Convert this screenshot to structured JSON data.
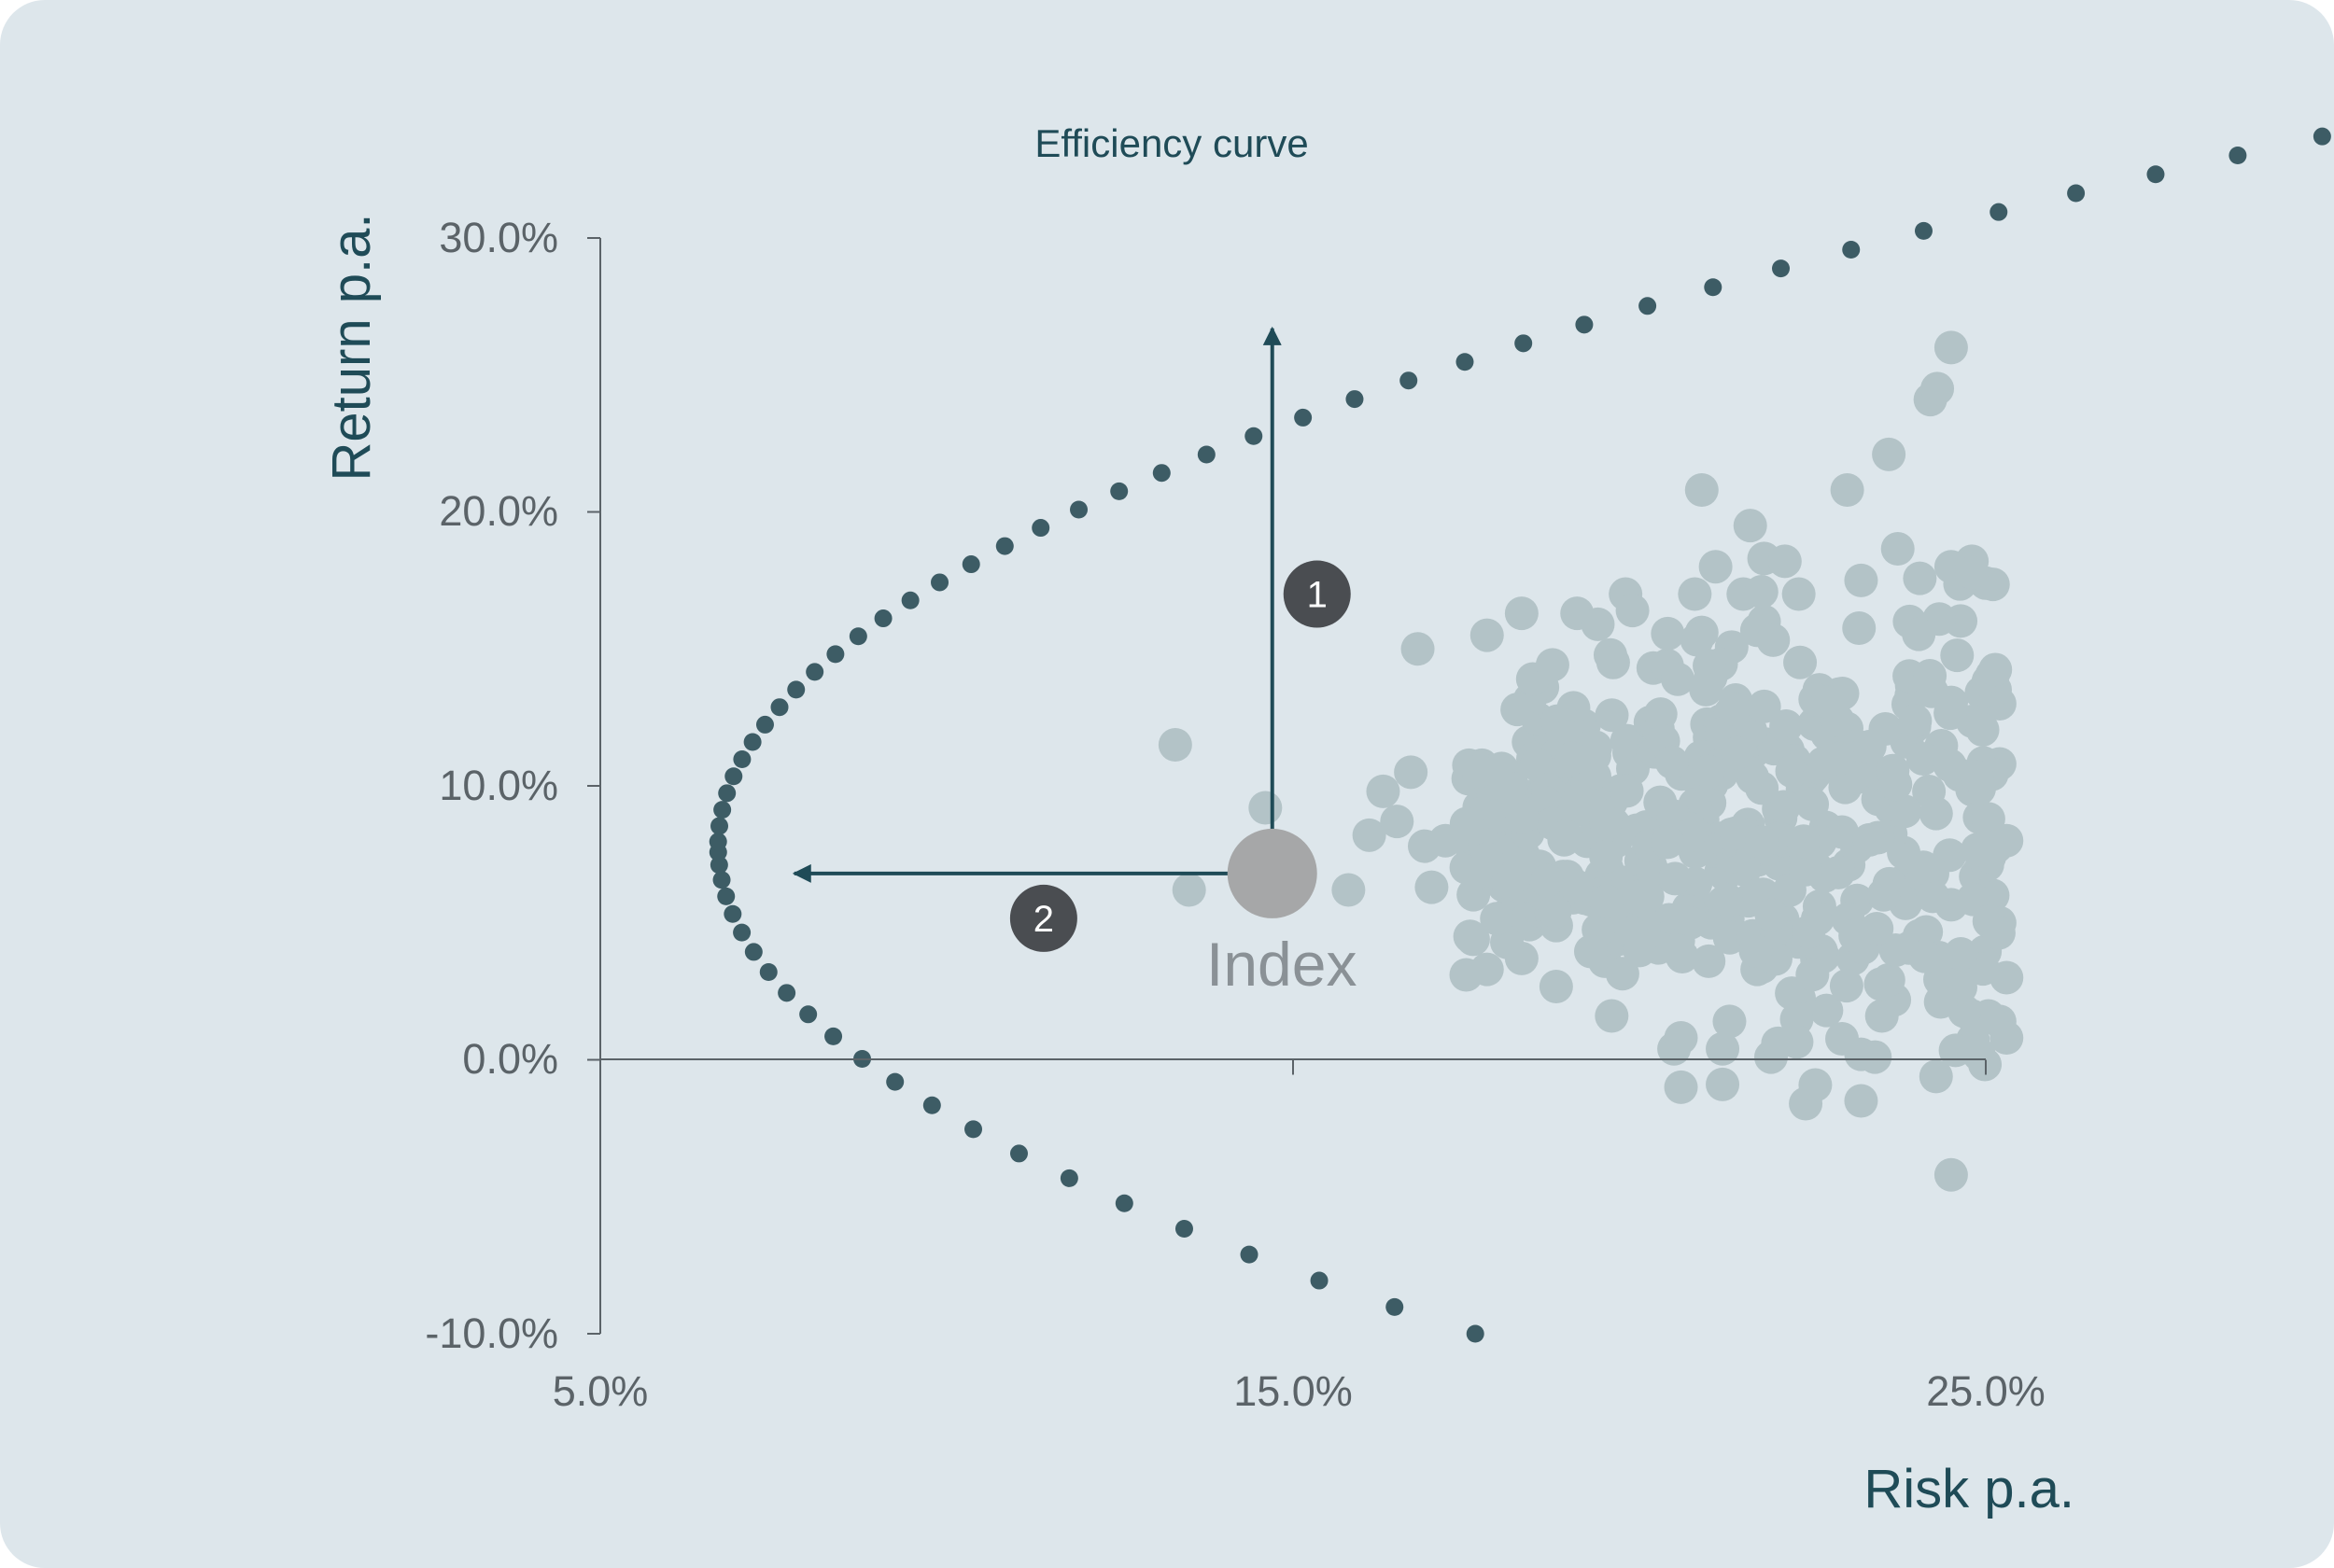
{
  "chart_data": {
    "type": "scatter",
    "xlabel": "Risk p.a.",
    "ylabel": "Return p.a.",
    "xlim": [
      5.0,
      25.0
    ],
    "ylim": [
      -10.0,
      30.0
    ],
    "x_ticks": [
      "5.0%",
      "15.0%",
      "25.0%"
    ],
    "y_ticks": [
      "30.0%",
      "20.0%",
      "10.0%",
      "0.0%",
      "-10.0%"
    ],
    "grid": false,
    "frontier_label": "Efficiency curve",
    "frontier": {
      "min_risk": 6.7,
      "min_risk_return": 7.8,
      "curvature": 0.0345,
      "return_range": [
        -10.0,
        34.4
      ],
      "points": 64,
      "color": "#3d5c65"
    },
    "index_point": {
      "label": "Index",
      "x": 14.7,
      "y": 6.8,
      "color": "#a6a7a8"
    },
    "arrows": [
      {
        "badge": "1",
        "from": [
          14.7,
          6.8
        ],
        "to": [
          14.7,
          26.7
        ]
      },
      {
        "badge": "2",
        "from": [
          14.3,
          6.8
        ],
        "to": [
          7.8,
          6.8
        ]
      }
    ],
    "portfolio_color": "#b3c3c7",
    "portfolios": [
      [
        13.3,
        11.5
      ],
      [
        13.5,
        6.2
      ],
      [
        14.6,
        9.2
      ],
      [
        15.8,
        6.2
      ],
      [
        16.1,
        8.2
      ],
      [
        16.3,
        9.8
      ],
      [
        16.5,
        8.7
      ],
      [
        16.7,
        10.5
      ],
      [
        16.8,
        15.0
      ],
      [
        17.0,
        6.3
      ],
      [
        16.9,
        7.8
      ],
      [
        17.2,
        8.0
      ],
      [
        17.5,
        3.1
      ],
      [
        17.6,
        4.4
      ],
      [
        17.8,
        3.3
      ],
      [
        17.8,
        15.5
      ],
      [
        17.9,
        9.3
      ],
      [
        17.9,
        7.6
      ],
      [
        18.0,
        10.5
      ],
      [
        18.3,
        3.7
      ],
      [
        18.3,
        16.3
      ],
      [
        18.4,
        11.6
      ],
      [
        18.5,
        5.2
      ],
      [
        18.6,
        13.6
      ],
      [
        18.7,
        12.0
      ],
      [
        18.8,
        4.9
      ],
      [
        19.0,
        6.2
      ],
      [
        19.1,
        16.3
      ],
      [
        19.2,
        12.2
      ],
      [
        19.4,
        15.9
      ],
      [
        19.5,
        3.6
      ],
      [
        19.6,
        1.6
      ],
      [
        19.7,
        4.4
      ],
      [
        19.8,
        17.0
      ],
      [
        19.9,
        16.4
      ],
      [
        20.2,
        14.3
      ],
      [
        20.1,
        8.5
      ],
      [
        20.3,
        9.4
      ],
      [
        20.4,
        14.4
      ],
      [
        20.5,
        0.4
      ],
      [
        20.6,
        0.8
      ],
      [
        20.6,
        -1.0
      ],
      [
        20.8,
        17.0
      ],
      [
        20.9,
        20.8
      ],
      [
        20.9,
        15.6
      ],
      [
        21.0,
        3.6
      ],
      [
        21.1,
        18.0
      ],
      [
        21.2,
        0.4
      ],
      [
        21.2,
        -0.9
      ],
      [
        21.3,
        1.4
      ],
      [
        21.5,
        17.0
      ],
      [
        21.6,
        19.5
      ],
      [
        21.7,
        3.3
      ],
      [
        21.8,
        18.3
      ],
      [
        21.9,
        0.1
      ],
      [
        22.0,
        0.6
      ],
      [
        21.8,
        16.0
      ],
      [
        22.1,
        18.2
      ],
      [
        22.3,
        17.0
      ],
      [
        22.4,
        -1.6
      ],
      [
        22.6,
        5.6
      ],
      [
        22.7,
        1.8
      ],
      [
        23.0,
        20.8
      ],
      [
        23.2,
        17.5
      ],
      [
        23.2,
        0.2
      ],
      [
        23.2,
        -1.5
      ],
      [
        23.4,
        0.1
      ],
      [
        23.5,
        1.6
      ],
      [
        23.6,
        22.1
      ],
      [
        23.9,
        16.0
      ],
      [
        24.2,
        24.1
      ],
      [
        24.5,
        26.0
      ],
      [
        24.3,
        24.5
      ],
      [
        24.5,
        18.0
      ],
      [
        24.8,
        18.2
      ],
      [
        25.0,
        17.4
      ],
      [
        24.5,
        -4.2
      ],
      [
        25.1,
        14.0
      ],
      [
        25.2,
        13.0
      ],
      [
        25.2,
        10.8
      ],
      [
        25.3,
        8.0
      ],
      [
        25.1,
        6.0
      ],
      [
        25.2,
        5.0
      ],
      [
        25.3,
        3.0
      ],
      [
        25.2,
        1.4
      ],
      [
        25.3,
        0.8
      ],
      [
        24.9,
        0.2
      ],
      [
        24.8,
        1.6
      ],
      [
        24.6,
        3.4
      ],
      [
        24.4,
        2.2
      ]
    ]
  }
}
